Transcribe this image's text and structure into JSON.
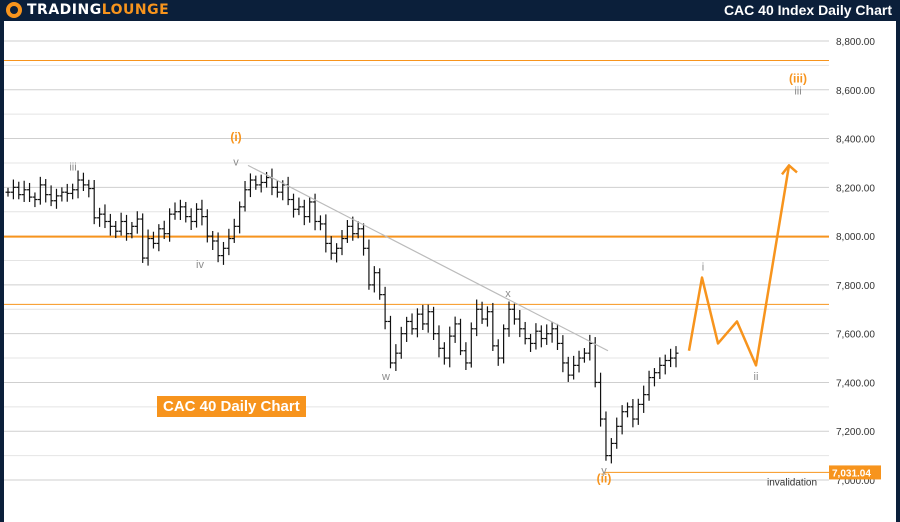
{
  "header": {
    "logo_part1": "TRADING",
    "logo_part2": "LOUNGE",
    "title": "CAC 40 Index Daily Chart"
  },
  "callout_label": "CAC 40 Daily Chart",
  "colors": {
    "orange": "#f7941d",
    "gray_label": "#8c8c8c",
    "grid": "#cfcfcf",
    "navy": "#0b1f3a"
  },
  "chart_data": {
    "type": "ohlc",
    "title": "CAC 40 Index Daily Chart",
    "y_ticks": [
      "8,800.00",
      "8,600.00",
      "8,400.00",
      "8,200.00",
      "8,000.00",
      "7,800.00",
      "7,600.00",
      "7,400.00",
      "7,200.00",
      "7,000.00"
    ],
    "y_tick_values": [
      8800,
      8600,
      8400,
      8200,
      8000,
      7800,
      7600,
      7400,
      7200,
      7000
    ],
    "ylim": [
      6995,
      8880
    ],
    "horizontal_levels": [
      {
        "value": 8720,
        "style": "thin"
      },
      {
        "value": 7998,
        "style": "thick"
      },
      {
        "value": 7720,
        "style": "thin"
      },
      {
        "value": 7031.04,
        "style": "thin",
        "label": "7,031.04",
        "note": "invalidation"
      }
    ],
    "price_series": [
      8180,
      8200,
      8170,
      8190,
      8160,
      8150,
      8210,
      8170,
      8145,
      8165,
      8180,
      8175,
      8190,
      8230,
      8210,
      8195,
      8075,
      8090,
      8060,
      8040,
      8020,
      8060,
      8010,
      8040,
      8070,
      7910,
      7990,
      7970,
      8030,
      8010,
      8090,
      8100,
      8120,
      8080,
      8060,
      8110,
      8080,
      8000,
      7980,
      7920,
      7950,
      7990,
      8040,
      8120,
      8190,
      8230,
      8210,
      8220,
      8240,
      8200,
      8180,
      8210,
      8150,
      8110,
      8120,
      8080,
      8140,
      8060,
      8050,
      7970,
      7930,
      7950,
      7990,
      8040,
      8010,
      8030,
      7950,
      7800,
      7850,
      7760,
      7650,
      7480,
      7520,
      7600,
      7650,
      7620,
      7680,
      7640,
      7690,
      7600,
      7540,
      7500,
      7590,
      7640,
      7530,
      7480,
      7620,
      7700,
      7660,
      7690,
      7550,
      7500,
      7620,
      7700,
      7660,
      7620,
      7580,
      7560,
      7610,
      7580,
      7600,
      7620,
      7560,
      7480,
      7430,
      7470,
      7500,
      7520,
      7560,
      7400,
      7250,
      7100,
      7150,
      7220,
      7280,
      7300,
      7250,
      7310,
      7350,
      7420,
      7440,
      7470,
      7490,
      7500,
      7520
    ],
    "projection": {
      "x": [
        0,
        1,
        2,
        3,
        4,
        5
      ],
      "y": [
        7530,
        7830,
        7560,
        7650,
        7470,
        8290
      ]
    },
    "trendline": {
      "from": 8290,
      "to": 7530
    },
    "wave_labels": [
      {
        "text": "iii",
        "color": "gray",
        "price": 8270
      },
      {
        "text": "(i)",
        "color": "orange",
        "price": 8390
      },
      {
        "text": "v",
        "color": "gray",
        "price": 8290
      },
      {
        "text": "iv",
        "color": "gray",
        "price": 7870
      },
      {
        "text": "w",
        "color": "gray",
        "price": 7410
      },
      {
        "text": "x",
        "color": "gray",
        "price": 7750
      },
      {
        "text": "y",
        "color": "gray",
        "price": 7025
      },
      {
        "text": "(ii)",
        "color": "orange",
        "price": 6990
      },
      {
        "text": "i",
        "color": "gray",
        "price": 7860
      },
      {
        "text": "ii",
        "color": "gray",
        "price": 7410
      },
      {
        "text": "(iii)",
        "color": "orange",
        "price": 8630
      },
      {
        "text": "iii",
        "color": "gray",
        "price": 8580
      }
    ]
  }
}
